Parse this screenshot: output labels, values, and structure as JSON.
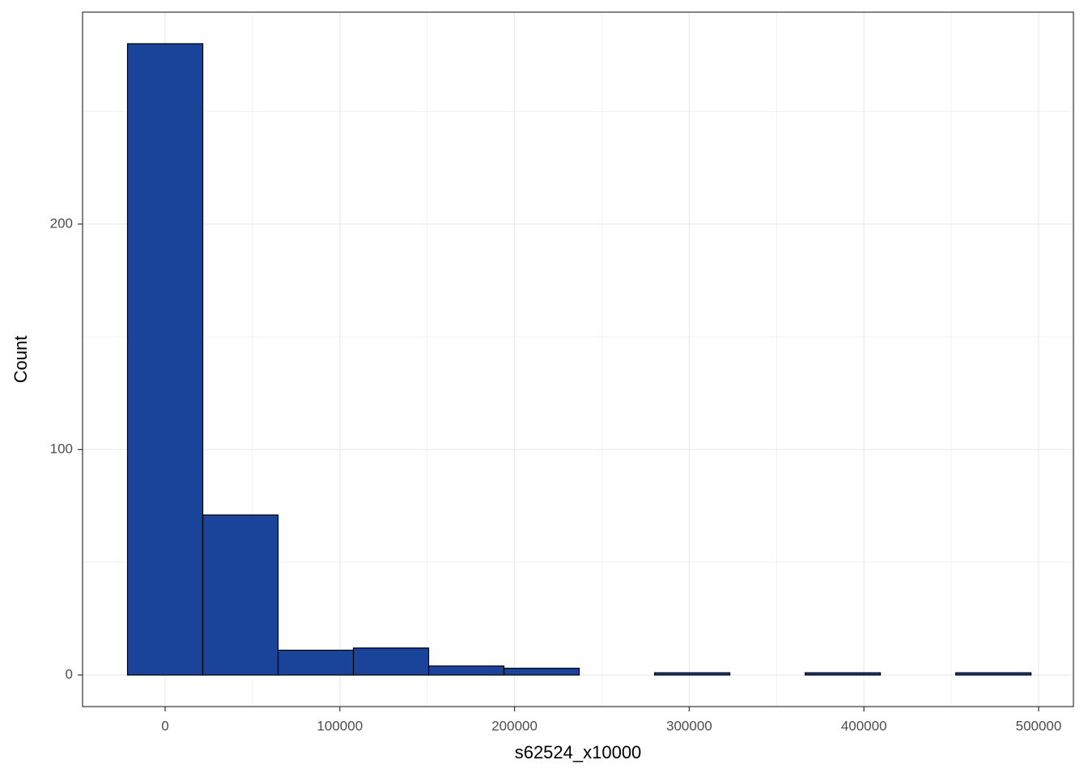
{
  "chart_data": {
    "type": "histogram",
    "x_label": "s62524_x10000",
    "y_label": "Count",
    "bins": [
      -21550,
      21550,
      64650,
      107750,
      150850,
      193950,
      237050,
      280150,
      323250,
      366350,
      409450,
      452550,
      495650
    ],
    "values": [
      280,
      71,
      11,
      12,
      4,
      3,
      0,
      1,
      0,
      1,
      0,
      1
    ],
    "color": "#1a4499",
    "edge_color": "#000000",
    "xlim": [
      -47270,
      519930
    ],
    "ylim": [
      -14,
      294
    ],
    "xticks": [
      0,
      100000,
      200000,
      300000,
      400000,
      500000
    ],
    "yticks": [
      0,
      100,
      200
    ],
    "minor_xticks": [
      50000,
      150000,
      250000,
      350000,
      450000
    ],
    "minor_yticks": [
      50,
      150,
      250
    ],
    "grid": true
  }
}
